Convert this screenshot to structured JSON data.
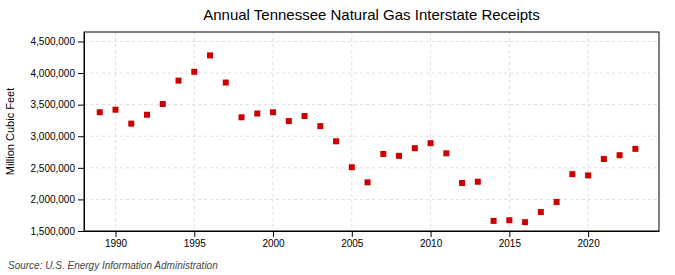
{
  "chart_data": {
    "type": "scatter",
    "title": "Annual Tennessee Natural Gas Interstate Receipts",
    "y_label": "Million Cubic Feet",
    "annotations": [
      "Source: U.S. Energy Information Administration"
    ],
    "x": [
      1989,
      1990,
      1991,
      1992,
      1993,
      1994,
      1995,
      1996,
      1997,
      1998,
      1999,
      2000,
      2001,
      2002,
      2003,
      2004,
      2005,
      2006,
      2007,
      2008,
      2009,
      2010,
      2011,
      2012,
      2013,
      2014,
      2015,
      2016,
      2017,
      2018,
      2019,
      2020,
      2021,
      2022,
      2023
    ],
    "values": [
      3380000,
      3420000,
      3200000,
      3340000,
      3510000,
      3880000,
      4020000,
      4280000,
      3850000,
      3300000,
      3360000,
      3380000,
      3240000,
      3320000,
      3160000,
      2920000,
      2510000,
      2270000,
      2720000,
      2690000,
      2810000,
      2890000,
      2730000,
      2260000,
      2280000,
      1660000,
      1670000,
      1640000,
      1800000,
      1960000,
      2400000,
      2380000,
      2640000,
      2700000,
      2800000
    ],
    "color": "#cc0000",
    "marker": "square",
    "xlim": [
      1988.0,
      2024.5
    ],
    "ylim": [
      1500000,
      4650000
    ],
    "xticks": [
      1990,
      1995,
      2000,
      2005,
      2010,
      2015,
      2020
    ],
    "yticks": [
      {
        "value": 1500000,
        "label": "1,500,000"
      },
      {
        "value": 2000000,
        "label": "2,000,000"
      },
      {
        "value": 2500000,
        "label": "2,500,000"
      },
      {
        "value": 3000000,
        "label": "3,000,000"
      },
      {
        "value": 3500000,
        "label": "3,500,000"
      },
      {
        "value": 4000000,
        "label": "4,000,000"
      },
      {
        "value": 4500000,
        "label": "4,500,000"
      }
    ],
    "grid": true
  }
}
